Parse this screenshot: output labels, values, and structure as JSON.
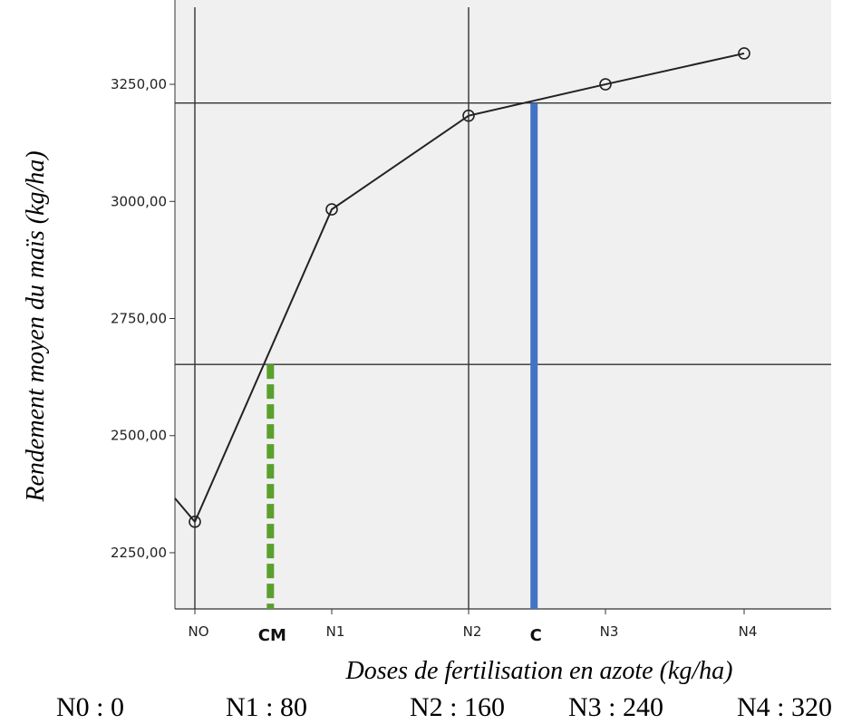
{
  "chart_data": {
    "type": "line",
    "xlabel": "Doses de fertilisation en azote (kg/ha)",
    "ylabel": "Rendement moyen du maïs (kg/ha)",
    "categories": [
      "NO",
      "N1",
      "N2",
      "N3",
      "N4"
    ],
    "series": [
      {
        "values": [
          2316,
          2983,
          3183,
          3250,
          3316
        ]
      }
    ],
    "ylim": [
      2130,
      3430
    ],
    "yticks": [
      2250,
      2500,
      2750,
      3000,
      3250
    ],
    "ytick_labels": [
      "2250,00",
      "2500,00",
      "2750,00",
      "3000,00",
      "3250,00"
    ],
    "grid": false,
    "background": "#f0f0f0",
    "line_color": "#222222",
    "reference_lines": {
      "horizontal": [
        3210,
        2652
      ],
      "vertical_categories": [
        "NO",
        "N2"
      ]
    },
    "markers": [
      {
        "label": "CM",
        "position": 0.55,
        "from": 2130,
        "to": 2652,
        "style": "dashed",
        "color": "#5aa02c"
      },
      {
        "label": "C",
        "position": 2.47,
        "from": 2130,
        "to": 3210,
        "style": "solid",
        "color": "#4472c4"
      }
    ],
    "dose_legend": [
      "N0 : 0",
      "N1 : 80",
      "N2 : 160",
      "N3 : 240",
      "N4 : 320"
    ]
  }
}
